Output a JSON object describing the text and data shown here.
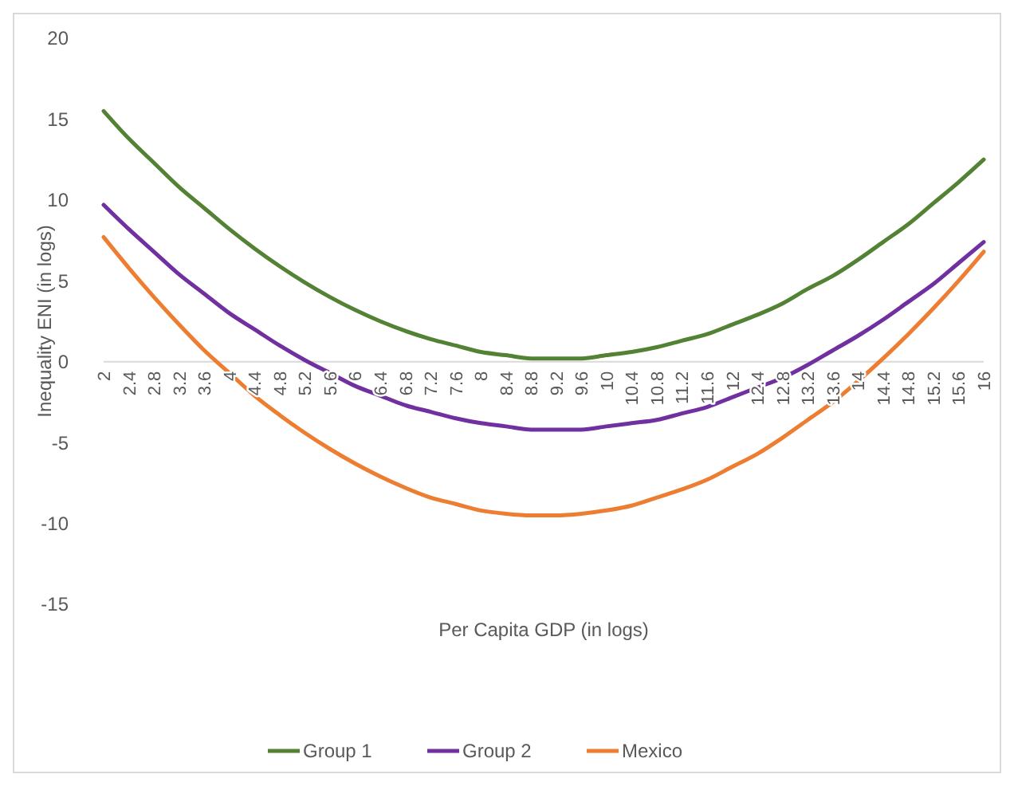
{
  "chart_data": {
    "type": "line",
    "xlabel": "Per Capita GDP (in logs)",
    "ylabel": "Inequality ENI (in logs)",
    "categories": [
      "2",
      "2.4",
      "2.8",
      "3.2",
      "3.6",
      "4",
      "4.4",
      "4.8",
      "5.2",
      "5.6",
      "6",
      "6.4",
      "6.8",
      "7.2",
      "7.6",
      "8",
      "8.4",
      "8.8",
      "9.2",
      "9.6",
      "10",
      "10.4",
      "10.8",
      "11.2",
      "11.6",
      "12",
      "12.4",
      "12.8",
      "13.2",
      "13.6",
      "14",
      "14.4",
      "14.8",
      "15.2",
      "15.6",
      "16"
    ],
    "ylim": [
      -15,
      20
    ],
    "yticks": [
      -15,
      -10,
      -5,
      0,
      5,
      10,
      15,
      20
    ],
    "grid": false,
    "legend": "bottom",
    "marker": "none",
    "line_style": "solid",
    "series": [
      {
        "name": "Group 1",
        "color": "#548235",
        "values": [
          15.5,
          13.8,
          12.3,
          10.8,
          9.5,
          8.2,
          7.0,
          5.9,
          4.9,
          4.0,
          3.2,
          2.5,
          1.9,
          1.4,
          1.0,
          0.6,
          0.4,
          0.2,
          0.2,
          0.2,
          0.4,
          0.6,
          0.9,
          1.3,
          1.7,
          2.3,
          2.9,
          3.6,
          4.5,
          5.3,
          6.3,
          7.4,
          8.5,
          9.8,
          11.1,
          12.5
        ]
      },
      {
        "name": "Group 2",
        "color": "#7030a0",
        "values": [
          9.7,
          8.2,
          6.8,
          5.4,
          4.2,
          3.0,
          2.0,
          1.0,
          0.1,
          -0.7,
          -1.5,
          -2.1,
          -2.7,
          -3.1,
          -3.5,
          -3.8,
          -4.0,
          -4.2,
          -4.2,
          -4.2,
          -4.0,
          -3.8,
          -3.6,
          -3.2,
          -2.8,
          -2.2,
          -1.6,
          -1.0,
          -0.2,
          0.7,
          1.6,
          2.6,
          3.7,
          4.8,
          6.1,
          7.4
        ]
      },
      {
        "name": "Mexico",
        "color": "#ed7d31",
        "values": [
          7.7,
          5.8,
          4.0,
          2.3,
          0.7,
          -0.7,
          -2.1,
          -3.3,
          -4.4,
          -5.4,
          -6.3,
          -7.1,
          -7.8,
          -8.4,
          -8.8,
          -9.2,
          -9.4,
          -9.5,
          -9.5,
          -9.4,
          -9.2,
          -8.9,
          -8.4,
          -7.9,
          -7.3,
          -6.5,
          -5.7,
          -4.7,
          -3.6,
          -2.5,
          -1.2,
          0.2,
          1.7,
          3.3,
          5.0,
          6.8
        ]
      }
    ]
  }
}
